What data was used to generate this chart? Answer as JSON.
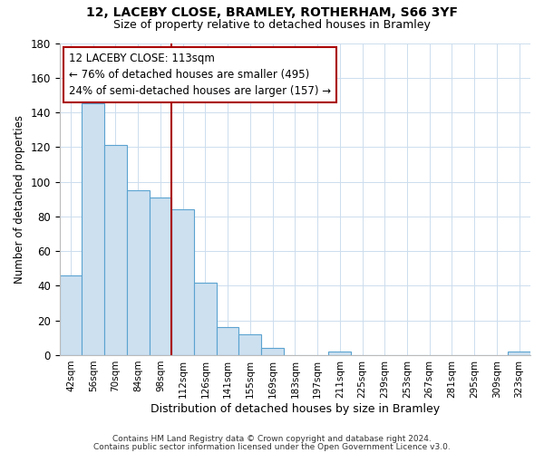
{
  "title": "12, LACEBY CLOSE, BRAMLEY, ROTHERHAM, S66 3YF",
  "subtitle": "Size of property relative to detached houses in Bramley",
  "xlabel": "Distribution of detached houses by size in Bramley",
  "ylabel": "Number of detached properties",
  "bar_labels": [
    "42sqm",
    "56sqm",
    "70sqm",
    "84sqm",
    "98sqm",
    "112sqm",
    "126sqm",
    "141sqm",
    "155sqm",
    "169sqm",
    "183sqm",
    "197sqm",
    "211sqm",
    "225sqm",
    "239sqm",
    "253sqm",
    "267sqm",
    "281sqm",
    "295sqm",
    "309sqm",
    "323sqm"
  ],
  "bar_values": [
    46,
    145,
    121,
    95,
    91,
    84,
    42,
    16,
    12,
    4,
    0,
    0,
    2,
    0,
    0,
    0,
    0,
    0,
    0,
    0,
    2
  ],
  "bar_color": "#cce0f0",
  "bar_edge_color": "#5ba3d0",
  "highlight_line_color": "#aa0000",
  "annotation_text": "12 LACEBY CLOSE: 113sqm\n← 76% of detached houses are smaller (495)\n24% of semi-detached houses are larger (157) →",
  "annotation_box_color": "#ffffff",
  "annotation_box_edge": "#aa0000",
  "ylim": [
    0,
    180
  ],
  "yticks": [
    0,
    20,
    40,
    60,
    80,
    100,
    120,
    140,
    160,
    180
  ],
  "footer_line1": "Contains HM Land Registry data © Crown copyright and database right 2024.",
  "footer_line2": "Contains public sector information licensed under the Open Government Licence v3.0.",
  "bg_color": "#ffffff",
  "grid_color": "#ccddee",
  "title_fontsize": 10,
  "subtitle_fontsize": 9
}
